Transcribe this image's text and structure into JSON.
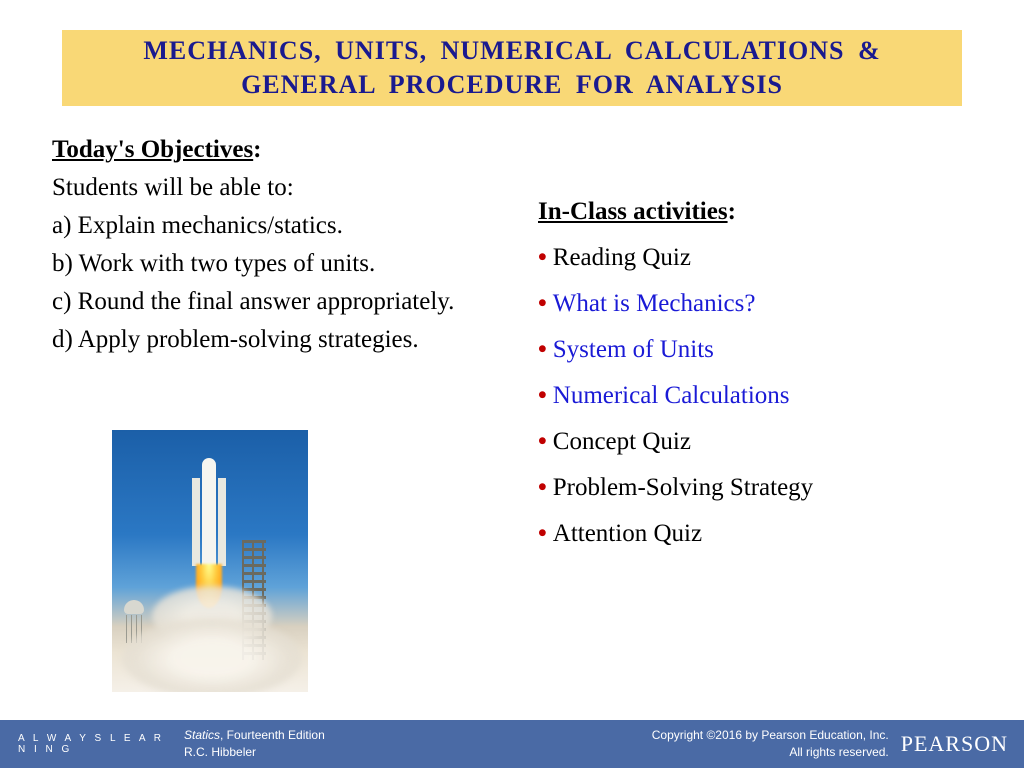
{
  "title": "MECHANICS,  UNITS,  NUMERICAL  CALCULATIONS  & GENERAL  PROCEDURE  FOR  ANALYSIS",
  "objectives": {
    "heading": "Today's Objectives",
    "intro": "Students will be able to:",
    "items": [
      "a)  Explain mechanics/statics.",
      "b)  Work with two types of units.",
      "c)  Round the final answer appropriately.",
      "d)  Apply problem-solving strategies."
    ]
  },
  "activities": {
    "heading": "In-Class activities",
    "items": [
      {
        "text": "Reading Quiz",
        "color": "black"
      },
      {
        "text": "What is Mechanics?",
        "color": "blue"
      },
      {
        "text": "System of Units",
        "color": "blue"
      },
      {
        "text": "Numerical Calculations",
        "color": "blue"
      },
      {
        "text": "Concept Quiz",
        "color": "black"
      },
      {
        "text": "Problem-Solving Strategy",
        "color": "black"
      },
      {
        "text": "Attention Quiz",
        "color": "black"
      }
    ]
  },
  "footer": {
    "always_learning": "A L W A Y S   L E A R N I N G",
    "book_title": "Statics",
    "book_edition": ", Fourteenth Edition",
    "author": "R.C. Hibbeler",
    "copyright_line1": "Copyright ©2016 by Pearson Education, Inc.",
    "copyright_line2": "All rights reserved.",
    "logo": "PEARSON"
  },
  "colors": {
    "title_bg": "#f9d876",
    "title_text": "#1a1a8f",
    "bullet": "#c00000",
    "link_blue": "#1a1ad6",
    "footer_bg": "#4a6aa5"
  }
}
